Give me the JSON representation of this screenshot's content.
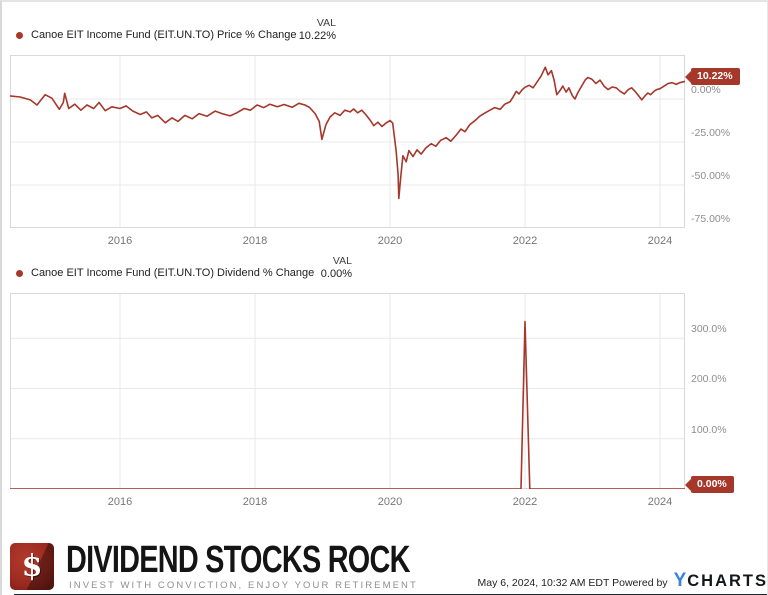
{
  "colors": {
    "line": "#a5372b",
    "grid": "#e8e8e8",
    "plot_border": "#d9d9d9",
    "brand_red": "#9e2b21",
    "ycharts_blue": "#3b82dd",
    "bottom_bar": "#1d2935"
  },
  "chart_data": [
    {
      "type": "line",
      "title": "Canoe EIT Income Fund (EIT.UN.TO) Price % Change",
      "legend_value_label": "VAL",
      "legend_value": "10.22%",
      "end_label": "10.22%",
      "xlim": [
        2014.37,
        2024.37
      ],
      "ylim": [
        -75,
        25.6
      ],
      "x_ticks": [
        2016,
        2018,
        2020,
        2022,
        2024
      ],
      "x_tick_labels": [
        "2016",
        "2018",
        "2020",
        "2022",
        "2024"
      ],
      "y_ticks": [
        0,
        -25,
        -50,
        -75
      ],
      "y_tick_labels": [
        "0.00%",
        "-25.00%",
        "-50.00%",
        "-75.00%"
      ],
      "grid": true,
      "legend_position": "top-left",
      "series": [
        {
          "name": "Price % Change",
          "color": "#a5372b",
          "points": [
            [
              2014.37,
              1.8
            ],
            [
              2014.52,
              1.2
            ],
            [
              2014.67,
              -0.5
            ],
            [
              2014.77,
              -3.5
            ],
            [
              2014.89,
              2.5
            ],
            [
              2014.99,
              0.5
            ],
            [
              2015.1,
              -6.0
            ],
            [
              2015.16,
              -2.0
            ],
            [
              2015.18,
              3.3
            ],
            [
              2015.24,
              -5.5
            ],
            [
              2015.33,
              -3.0
            ],
            [
              2015.42,
              -6.5
            ],
            [
              2015.51,
              -3.5
            ],
            [
              2015.61,
              -5.5
            ],
            [
              2015.69,
              -2.0
            ],
            [
              2015.78,
              -6.8
            ],
            [
              2015.88,
              -4.5
            ],
            [
              2016.0,
              -5.5
            ],
            [
              2016.09,
              -4.0
            ],
            [
              2016.19,
              -7.0
            ],
            [
              2016.3,
              -9.0
            ],
            [
              2016.39,
              -7.5
            ],
            [
              2016.47,
              -11.0
            ],
            [
              2016.56,
              -9.5
            ],
            [
              2016.67,
              -13.8
            ],
            [
              2016.77,
              -11.0
            ],
            [
              2016.86,
              -13.0
            ],
            [
              2016.96,
              -9.5
            ],
            [
              2017.07,
              -11.5
            ],
            [
              2017.17,
              -8.5
            ],
            [
              2017.29,
              -10.0
            ],
            [
              2017.41,
              -7.0
            ],
            [
              2017.51,
              -8.5
            ],
            [
              2017.63,
              -9.8
            ],
            [
              2017.73,
              -8.0
            ],
            [
              2017.84,
              -5.5
            ],
            [
              2017.93,
              -6.5
            ],
            [
              2018.03,
              -3.5
            ],
            [
              2018.13,
              -5.0
            ],
            [
              2018.22,
              -3.0
            ],
            [
              2018.33,
              -4.5
            ],
            [
              2018.43,
              -3.2
            ],
            [
              2018.55,
              -4.8
            ],
            [
              2018.65,
              -2.5
            ],
            [
              2018.74,
              -3.5
            ],
            [
              2018.81,
              -5.0
            ],
            [
              2018.89,
              -8.5
            ],
            [
              2018.95,
              -13.0
            ],
            [
              2018.99,
              -23.5
            ],
            [
              2019.05,
              -15.0
            ],
            [
              2019.11,
              -10.5
            ],
            [
              2019.18,
              -8.0
            ],
            [
              2019.26,
              -9.5
            ],
            [
              2019.33,
              -6.5
            ],
            [
              2019.41,
              -7.5
            ],
            [
              2019.46,
              -5.8
            ],
            [
              2019.52,
              -8.0
            ],
            [
              2019.58,
              -6.5
            ],
            [
              2019.64,
              -9.0
            ],
            [
              2019.7,
              -12.0
            ],
            [
              2019.76,
              -15.5
            ],
            [
              2019.82,
              -13.5
            ],
            [
              2019.88,
              -16.0
            ],
            [
              2019.94,
              -14.0
            ],
            [
              2020.0,
              -12.5
            ],
            [
              2020.04,
              -14.0
            ],
            [
              2020.09,
              -30.0
            ],
            [
              2020.12,
              -44.0
            ],
            [
              2020.13,
              -57.8
            ],
            [
              2020.16,
              -45.0
            ],
            [
              2020.19,
              -33.0
            ],
            [
              2020.24,
              -36.5
            ],
            [
              2020.28,
              -30.0
            ],
            [
              2020.34,
              -33.5
            ],
            [
              2020.4,
              -29.5
            ],
            [
              2020.46,
              -32.0
            ],
            [
              2020.53,
              -28.5
            ],
            [
              2020.61,
              -26.0
            ],
            [
              2020.68,
              -27.5
            ],
            [
              2020.75,
              -24.0
            ],
            [
              2020.83,
              -22.5
            ],
            [
              2020.9,
              -24.5
            ],
            [
              2020.98,
              -21.0
            ],
            [
              2021.05,
              -17.5
            ],
            [
              2021.11,
              -19.0
            ],
            [
              2021.18,
              -15.0
            ],
            [
              2021.26,
              -12.5
            ],
            [
              2021.33,
              -10.0
            ],
            [
              2021.41,
              -8.0
            ],
            [
              2021.48,
              -6.5
            ],
            [
              2021.55,
              -5.0
            ],
            [
              2021.63,
              -6.0
            ],
            [
              2021.7,
              -3.0
            ],
            [
              2021.78,
              -1.5
            ],
            [
              2021.82,
              1.0
            ],
            [
              2021.87,
              4.5
            ],
            [
              2021.91,
              3.0
            ],
            [
              2021.96,
              5.5
            ],
            [
              2022.0,
              6.8
            ],
            [
              2022.06,
              8.0
            ],
            [
              2022.12,
              6.5
            ],
            [
              2022.18,
              10.0
            ],
            [
              2022.24,
              13.5
            ],
            [
              2022.3,
              18.5
            ],
            [
              2022.34,
              14.0
            ],
            [
              2022.39,
              16.5
            ],
            [
              2022.43,
              11.0
            ],
            [
              2022.47,
              2.5
            ],
            [
              2022.52,
              5.0
            ],
            [
              2022.56,
              7.5
            ],
            [
              2022.61,
              4.0
            ],
            [
              2022.65,
              6.5
            ],
            [
              2022.7,
              2.0
            ],
            [
              2022.74,
              0.0
            ],
            [
              2022.78,
              3.5
            ],
            [
              2022.83,
              7.0
            ],
            [
              2022.89,
              11.0
            ],
            [
              2022.93,
              12.5
            ],
            [
              2022.99,
              11.5
            ],
            [
              2023.05,
              9.0
            ],
            [
              2023.11,
              11.0
            ],
            [
              2023.17,
              7.5
            ],
            [
              2023.23,
              5.5
            ],
            [
              2023.29,
              7.0
            ],
            [
              2023.35,
              6.5
            ],
            [
              2023.41,
              4.5
            ],
            [
              2023.47,
              3.0
            ],
            [
              2023.53,
              5.5
            ],
            [
              2023.58,
              6.5
            ],
            [
              2023.64,
              4.0
            ],
            [
              2023.69,
              1.5
            ],
            [
              2023.73,
              -0.5
            ],
            [
              2023.78,
              2.0
            ],
            [
              2023.82,
              3.5
            ],
            [
              2023.86,
              2.5
            ],
            [
              2023.91,
              4.5
            ],
            [
              2023.95,
              5.5
            ],
            [
              2024.0,
              6.0
            ],
            [
              2024.06,
              7.5
            ],
            [
              2024.12,
              9.0
            ],
            [
              2024.18,
              9.5
            ],
            [
              2024.24,
              8.5
            ],
            [
              2024.29,
              9.5
            ],
            [
              2024.37,
              10.22
            ]
          ]
        }
      ]
    },
    {
      "type": "line",
      "title": "Canoe EIT Income Fund (EIT.UN.TO) Dividend % Change",
      "legend_value_label": "VAL",
      "legend_value": "0.00%",
      "end_label": "0.00%",
      "xlim": [
        2014.37,
        2024.37
      ],
      "ylim": [
        0,
        390
      ],
      "x_ticks": [
        2016,
        2018,
        2020,
        2022,
        2024
      ],
      "x_tick_labels": [
        "2016",
        "2018",
        "2020",
        "2022",
        "2024"
      ],
      "y_ticks": [
        300,
        200,
        100
      ],
      "y_tick_labels": [
        "300.0%",
        "200.0%",
        "100.0%"
      ],
      "grid": true,
      "legend_position": "top-left",
      "series": [
        {
          "name": "Dividend % Change",
          "color": "#a5372b",
          "points": [
            [
              2014.37,
              0
            ],
            [
              2021.94,
              0
            ],
            [
              2022.0,
              333
            ],
            [
              2022.07,
              0
            ],
            [
              2024.37,
              0
            ]
          ]
        }
      ]
    }
  ],
  "footer": {
    "brand": "DIVIDEND STOCKS ROCK",
    "tagline": "INVEST WITH CONVICTION, ENJOY YOUR RETIREMENT",
    "logo_symbol": "$",
    "timestamp": "May 6, 2024, 10:32 AM EDT",
    "powered_by": "Powered by",
    "ycharts_y": "Y",
    "ycharts_rest": "CHARTS"
  }
}
